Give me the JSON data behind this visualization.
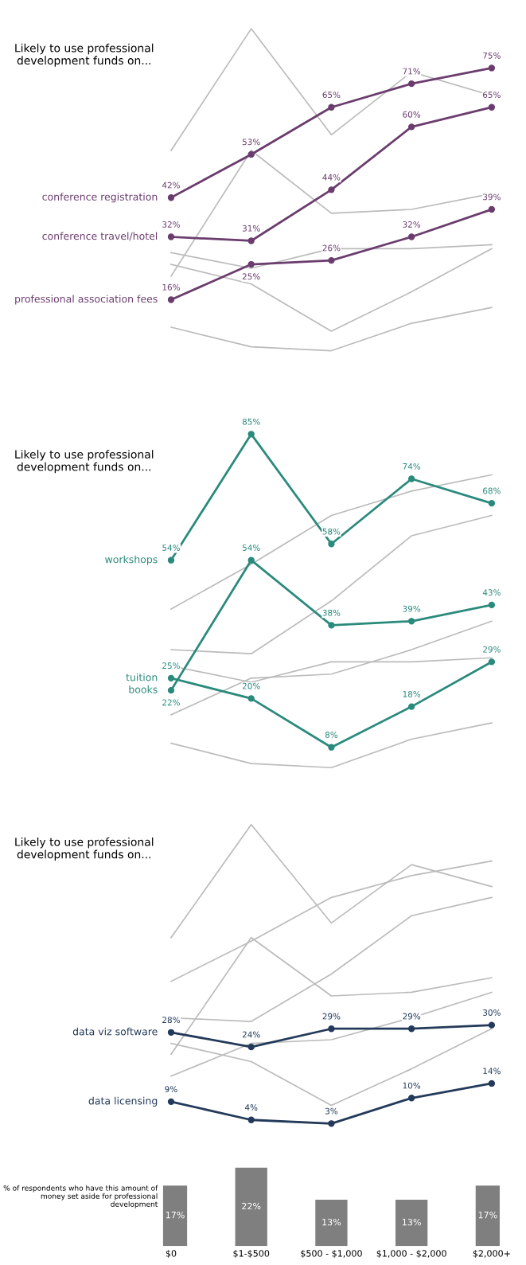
{
  "chart_data": [
    {
      "type": "line",
      "title": "Likely to use professional development funds on...",
      "categories": [
        null,
        null,
        null,
        null,
        null
      ],
      "legend": false,
      "series": [
        {
          "color": "#bbbbbb",
          "marker": "none",
          "values": [
            54,
            85,
            58,
            74,
            68
          ]
        },
        {
          "color": "#bbbbbb",
          "marker": "none",
          "values": [
            25,
            20,
            8,
            18,
            29
          ]
        },
        {
          "color": "#bbbbbb",
          "marker": "none",
          "values": [
            22,
            54,
            38,
            39,
            43
          ]
        },
        {
          "color": "#bbbbbb",
          "marker": "none",
          "values": [
            28,
            24,
            29,
            29,
            30
          ]
        },
        {
          "color": "#bbbbbb",
          "marker": "none",
          "values": [
            9,
            4,
            3,
            10,
            14
          ]
        },
        {
          "name": "conference registration",
          "marker": "circle",
          "color": "#6b3d6e",
          "values": [
            42,
            53,
            65,
            71,
            75
          ],
          "value_labels": [
            "42%",
            "53%",
            "65%",
            "71%",
            "75%"
          ]
        },
        {
          "name": "conference travel/hotel",
          "marker": "circle",
          "color": "#6b3d6e",
          "values": [
            32,
            31,
            44,
            60,
            65
          ],
          "value_labels": [
            "32%",
            "31%",
            "44%",
            "60%",
            "65%"
          ]
        },
        {
          "name": "professional association fees",
          "marker": "circle",
          "color": "#6b3d6e",
          "values": [
            16,
            25,
            26,
            32,
            39
          ],
          "value_labels": [
            "16%",
            "25%",
            "26%",
            "32%",
            "39%"
          ]
        }
      ]
    },
    {
      "type": "line",
      "title": "Likely to use professional development funds on...",
      "categories": [
        null,
        null,
        null,
        null,
        null
      ],
      "legend": false,
      "series": [
        {
          "color": "#bbbbbb",
          "marker": "none",
          "values": [
            42,
            53,
            65,
            71,
            75
          ]
        },
        {
          "color": "#bbbbbb",
          "marker": "none",
          "values": [
            32,
            31,
            44,
            60,
            65
          ]
        },
        {
          "color": "#bbbbbb",
          "marker": "none",
          "values": [
            16,
            25,
            26,
            32,
            39
          ]
        },
        {
          "color": "#bbbbbb",
          "marker": "none",
          "values": [
            28,
            24,
            29,
            29,
            30
          ]
        },
        {
          "color": "#bbbbbb",
          "marker": "none",
          "values": [
            9,
            4,
            3,
            10,
            14
          ]
        },
        {
          "name": "workshops",
          "marker": "circle",
          "color": "#2a8a7c",
          "values": [
            54,
            85,
            58,
            74,
            68
          ],
          "value_labels": [
            "54%",
            "85%",
            "58%",
            "74%",
            "68%"
          ]
        },
        {
          "name": "tuition",
          "marker": "circle",
          "color": "#2a8a7c",
          "values": [
            25,
            20,
            8,
            18,
            29
          ],
          "value_labels": [
            "25%",
            "20%",
            "8%",
            "18%",
            "29%"
          ]
        },
        {
          "name": "books",
          "marker": "circle",
          "color": "#2a8a7c",
          "values": [
            22,
            54,
            38,
            39,
            43
          ],
          "value_labels": [
            "22%",
            "54%",
            "38%",
            "39%",
            "43%"
          ]
        }
      ]
    },
    {
      "type": "line",
      "title": "Likely to use professional development funds on...",
      "categories": [
        null,
        null,
        null,
        null,
        null
      ],
      "legend": false,
      "series": [
        {
          "color": "#bbbbbb",
          "marker": "none",
          "values": [
            54,
            85,
            58,
            74,
            68
          ]
        },
        {
          "color": "#bbbbbb",
          "marker": "none",
          "values": [
            25,
            20,
            8,
            18,
            29
          ]
        },
        {
          "color": "#bbbbbb",
          "marker": "none",
          "values": [
            22,
            54,
            38,
            39,
            43
          ]
        },
        {
          "color": "#bbbbbb",
          "marker": "none",
          "values": [
            42,
            53,
            65,
            71,
            75
          ]
        },
        {
          "color": "#bbbbbb",
          "marker": "none",
          "values": [
            32,
            31,
            44,
            60,
            65
          ]
        },
        {
          "color": "#bbbbbb",
          "marker": "none",
          "values": [
            16,
            25,
            26,
            32,
            39
          ]
        },
        {
          "name": "data viz software",
          "marker": "circle",
          "color": "#233a5a",
          "values": [
            28,
            24,
            29,
            29,
            30
          ],
          "value_labels": [
            "28%",
            "24%",
            "29%",
            "29%",
            "30%"
          ]
        },
        {
          "name": "data licensing",
          "marker": "circle",
          "color": "#233a5a",
          "values": [
            9,
            4,
            3,
            10,
            14
          ],
          "value_labels": [
            "9%",
            "4%",
            "3%",
            "10%",
            "14%"
          ]
        }
      ]
    },
    {
      "type": "bar",
      "categories": [
        "$0",
        "$1-$500",
        "$500 - $1,000",
        "$1,000 - $2,000",
        "$2,000+"
      ],
      "tick_labels": "x",
      "values": [
        17,
        22,
        13,
        13,
        17
      ],
      "color": "#7f7f7f",
      "value_labels": [
        "17%",
        "22%",
        "13%",
        "13%",
        "17%"
      ],
      "annotations": [
        "% of respondents who have this amount of money set aside for professional development"
      ]
    }
  ]
}
